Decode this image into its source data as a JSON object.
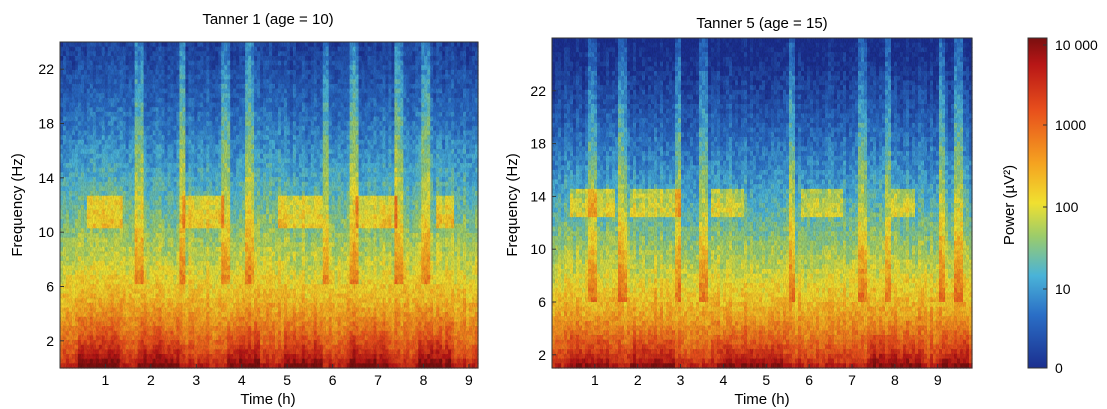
{
  "chart_data": [
    {
      "type": "heatmap",
      "title": "Tanner 1 (age = 10)",
      "xlabel": "Time (h)",
      "ylabel": "Frequency (Hz)",
      "x_ticks": [
        "1",
        "2",
        "3",
        "4",
        "5",
        "6",
        "7",
        "8",
        "9"
      ],
      "y_ticks": [
        "2",
        "6",
        "10",
        "14",
        "18",
        "22"
      ],
      "xlim": [
        0,
        9.2
      ],
      "ylim": [
        0,
        24
      ],
      "spindle_band_hz": 11.5,
      "spindle_bursts_h": [
        [
          0.6,
          1.4
        ],
        [
          2.7,
          3.6
        ],
        [
          4.8,
          5.8
        ],
        [
          6.5,
          7.4
        ],
        [
          8.3,
          8.7
        ]
      ],
      "arousals_h": [
        1.75,
        2.7,
        3.65,
        4.15,
        5.85,
        6.45,
        7.45,
        8.05
      ],
      "deep_sleep_bursts_h": [
        [
          0.4,
          1.3
        ],
        [
          1.7,
          2.6
        ],
        [
          3.7,
          4.4
        ],
        [
          4.9,
          5.8
        ],
        [
          6.4,
          7.2
        ],
        [
          7.9,
          8.6
        ]
      ]
    },
    {
      "type": "heatmap",
      "title": "Tanner 5 (age = 15)",
      "xlabel": "Time (h)",
      "ylabel": "Frequency (Hz)",
      "x_ticks": [
        "1",
        "2",
        "3",
        "4",
        "5",
        "6",
        "7",
        "8",
        "9"
      ],
      "y_ticks": [
        "2",
        "6",
        "10",
        "14",
        "18",
        "22"
      ],
      "xlim": [
        0,
        9.8
      ],
      "ylim": [
        1,
        26
      ],
      "spindle_band_hz": 13.5,
      "spindle_bursts_h": [
        [
          0.4,
          1.5
        ],
        [
          1.8,
          3.0
        ],
        [
          3.7,
          4.5
        ],
        [
          5.8,
          6.8
        ],
        [
          7.9,
          8.5
        ]
      ],
      "arousals_h": [
        0.95,
        1.65,
        2.95,
        3.55,
        5.6,
        7.25,
        7.85,
        9.1,
        9.5
      ],
      "deep_sleep_bursts_h": [
        [
          0.4,
          1.3
        ],
        [
          1.8,
          2.9
        ],
        [
          3.9,
          5.4
        ],
        [
          7.4,
          8.6
        ],
        [
          9.1,
          9.7
        ]
      ]
    }
  ],
  "colorbar": {
    "label": "Power (µV²)",
    "ticks": [
      "10 000",
      "1000",
      "100",
      "10",
      "0"
    ],
    "colors": [
      "#7a0f0f",
      "#d12a1a",
      "#f07a1a",
      "#f5d82a",
      "#9fcf6a",
      "#4ab3d8",
      "#2a6ec6",
      "#1b2f8f"
    ]
  }
}
